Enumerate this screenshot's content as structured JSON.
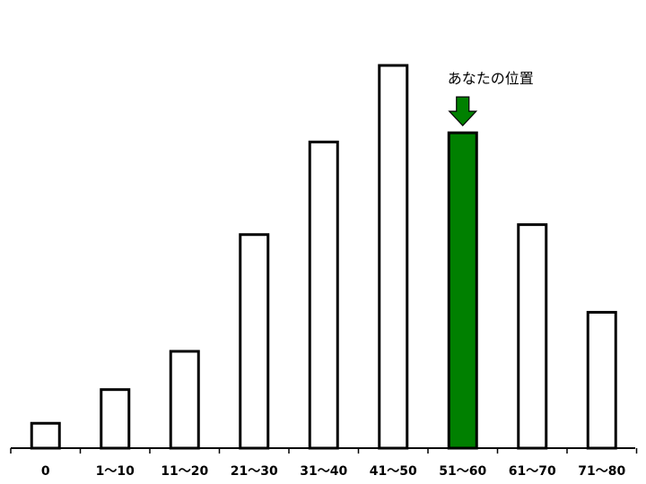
{
  "chart_data": {
    "type": "bar",
    "title": "",
    "xlabel": "",
    "ylabel": "",
    "categories": [
      "0",
      "1〜10",
      "11〜20",
      "21〜30",
      "31〜40",
      "41〜50",
      "51〜60",
      "61〜70",
      "71〜80"
    ],
    "values": [
      6.5,
      15.3,
      25.3,
      55.8,
      80.0,
      100.0,
      82.4,
      58.4,
      35.5
    ],
    "ylim": [
      0,
      100
    ],
    "grid": false,
    "legend": "none",
    "highlight_index": 6,
    "colors": {
      "default_fill": "#ffffff",
      "highlight_fill": "#008000",
      "stroke": "#000000"
    },
    "annotation": {
      "text": "あなたの位置",
      "target_category": "51〜60",
      "icon": "down-arrow-icon"
    }
  }
}
